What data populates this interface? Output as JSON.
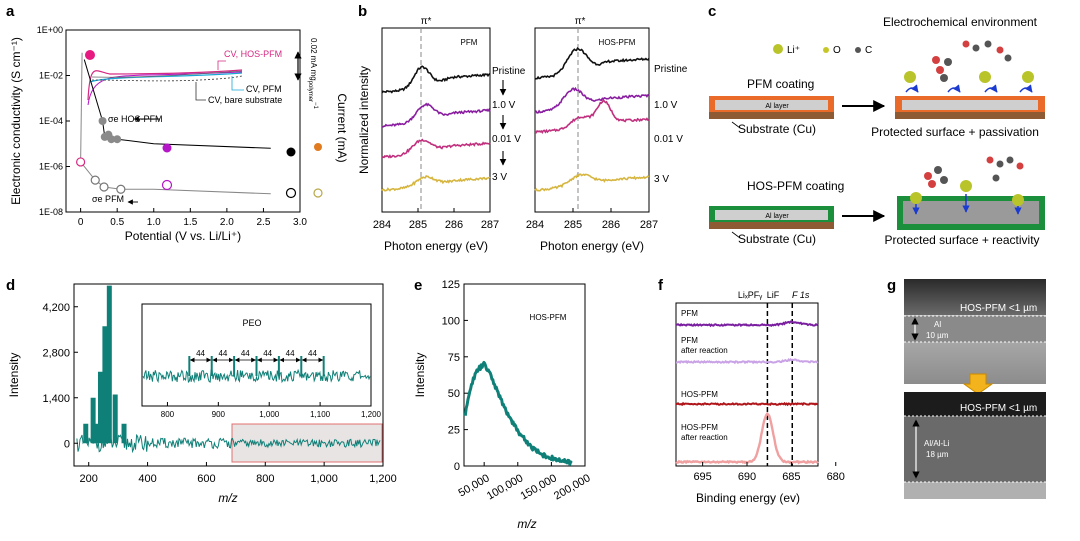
{
  "panels": {
    "a": "a",
    "b": "b",
    "c": "c",
    "d": "d",
    "e": "e",
    "f": "f",
    "g": "g"
  },
  "colors": {
    "black": "#000000",
    "purple": "#b416c8",
    "pink": "#d42a82",
    "cyan": "#1aa7d6",
    "orange": "#e07b1f",
    "gray": "#7a7a7a",
    "teal": "#0f8078",
    "mauve": "#c79bd6",
    "rust": "#e2542a",
    "green": "#1b8f3c",
    "brown": "#8d5a33",
    "gold": "#d8b23a",
    "spec_black": "#111111",
    "spec_purple": "#8a1ea0",
    "spec_pink": "#c0307e",
    "spec_yellow": "#d6b640",
    "xps_purple": "#7a1fa0",
    "xps_lavender": "#c9a3e6",
    "xps_red": "#b0151a",
    "xps_salmon": "#f0a0a0"
  },
  "chart_data": [
    {
      "id": "a",
      "type": "scatter",
      "xlabel": "Potential (V vs. Li/Li⁺)",
      "ylabel": "Electronic conductivity (S cm⁻¹)",
      "y2label": "Current (mA)",
      "xlim": [
        -0.2,
        3.0
      ],
      "ylim_log10": [
        -8,
        0
      ],
      "xticks": [
        "0",
        "0.5",
        "1.0",
        "1.5",
        "2.0",
        "2.5",
        "3.0"
      ],
      "yticks": [
        "1E-08",
        "1E-06",
        "1E-04",
        "1E-02",
        "1E+00"
      ],
      "series": [
        {
          "name": "σe HOS-PFM",
          "x": [
            0.3,
            0.33,
            0.38,
            0.42,
            0.5,
            1.0,
            2.6
          ],
          "y": [
            -4.0,
            -4.7,
            -4.6,
            -4.8,
            -4.8,
            -5.0,
            -5.2
          ]
        },
        {
          "name": "σe PFM",
          "x": [
            0.0,
            0.2,
            0.32,
            0.55,
            1.0,
            2.6
          ],
          "y": [
            -5.8,
            -6.6,
            -6.9,
            -7.0,
            -7.0,
            -7.2
          ]
        }
      ],
      "cv_labels": {
        "hos": "CV, HOS-PFM",
        "pfm": "CV, PFM",
        "bare": "CV, bare substrate"
      },
      "scale_label": "0.02 mA mg",
      "scale_sub": "polymer",
      "scale_sup": "−1",
      "annot_hos": "σe HOS-PFM",
      "annot_pfm": "σe PFM"
    },
    {
      "id": "b",
      "type": "line",
      "xlabel": "Photon energy (eV)",
      "ylabel": "Normalized intensity",
      "xlim": [
        284,
        287
      ],
      "xticks": [
        "284",
        "285",
        "286",
        "287"
      ],
      "peak_label": "π*",
      "peak_energy": 285.1,
      "subpanels": [
        "PFM",
        "HOS-PFM"
      ],
      "states": [
        "Pristine",
        "1.0 V",
        "0.01 V",
        "3 V"
      ]
    },
    {
      "id": "d",
      "type": "line",
      "xlabel": "m/z",
      "ylabel": "Intensity",
      "xlim": [
        150,
        1200
      ],
      "ylim": [
        -700,
        4900
      ],
      "xticks": [
        "200",
        "400",
        "600",
        "800",
        "1,000",
        "1,200"
      ],
      "yticks": [
        "0",
        "1,400",
        "2,800",
        "4,200"
      ],
      "peaks": {
        "x": [
          190,
          215,
          225,
          240,
          255,
          270,
          290,
          320
        ],
        "y": [
          600,
          1400,
          600,
          2200,
          3600,
          4850,
          1500,
          600
        ]
      },
      "inset": {
        "label": "PEO",
        "spacing": "44",
        "xticks": [
          "800",
          "900",
          "1,000",
          "1,100",
          "1,200"
        ],
        "peaks_x": [
          843,
          887,
          931,
          975,
          1019,
          1063,
          1107
        ]
      }
    },
    {
      "id": "e",
      "type": "line",
      "xlabel": "m/z",
      "ylabel": "Intensity",
      "xlim": [
        20000,
        200000
      ],
      "ylim": [
        0,
        125
      ],
      "xticks": [
        "50,000",
        "100,000",
        "150,000",
        "200,000"
      ],
      "yticks": [
        "0",
        "25",
        "50",
        "75",
        "100",
        "125"
      ],
      "legend": "HOS-PFM",
      "x": [
        22000,
        30000,
        40000,
        50000,
        60000,
        80000,
        100000,
        120000,
        140000,
        160000,
        180000
      ],
      "y": [
        35,
        55,
        66,
        70,
        62,
        40,
        24,
        13,
        7,
        4,
        2
      ]
    },
    {
      "id": "f",
      "type": "line",
      "xlabel": "Binding energy (ev)",
      "xlim": [
        698,
        682
      ],
      "xticks": [
        "695",
        "690",
        "685",
        "680"
      ],
      "title": "F 1s",
      "marker_labels": [
        "LiₓPFᵧ",
        "LiF"
      ],
      "markers": [
        687.7,
        684.9
      ],
      "traces": [
        "PFM",
        "PFM after reaction",
        "HOS-PFM",
        "HOS-PFM after reaction"
      ]
    }
  ],
  "panel_c": {
    "legend": [
      "Li⁺",
      "O",
      "C"
    ],
    "env_title": "Electrochemical environment",
    "coat1": "PFM coating",
    "coat2": "HOS-PFM coating",
    "al": "Al layer",
    "substrate": "Substrate (Cu)",
    "caption1": "Protected surface + passivation",
    "caption2": "Protected surface + reactivity"
  },
  "panel_g": {
    "top_label": "HOS-PFM <1 µm",
    "al_label": "Al",
    "al_thickness": "10 µm",
    "bottom_label": "HOS-PFM <1 µm",
    "alli_label": "Al/Al-Li",
    "alli_thickness": "18 µm"
  }
}
